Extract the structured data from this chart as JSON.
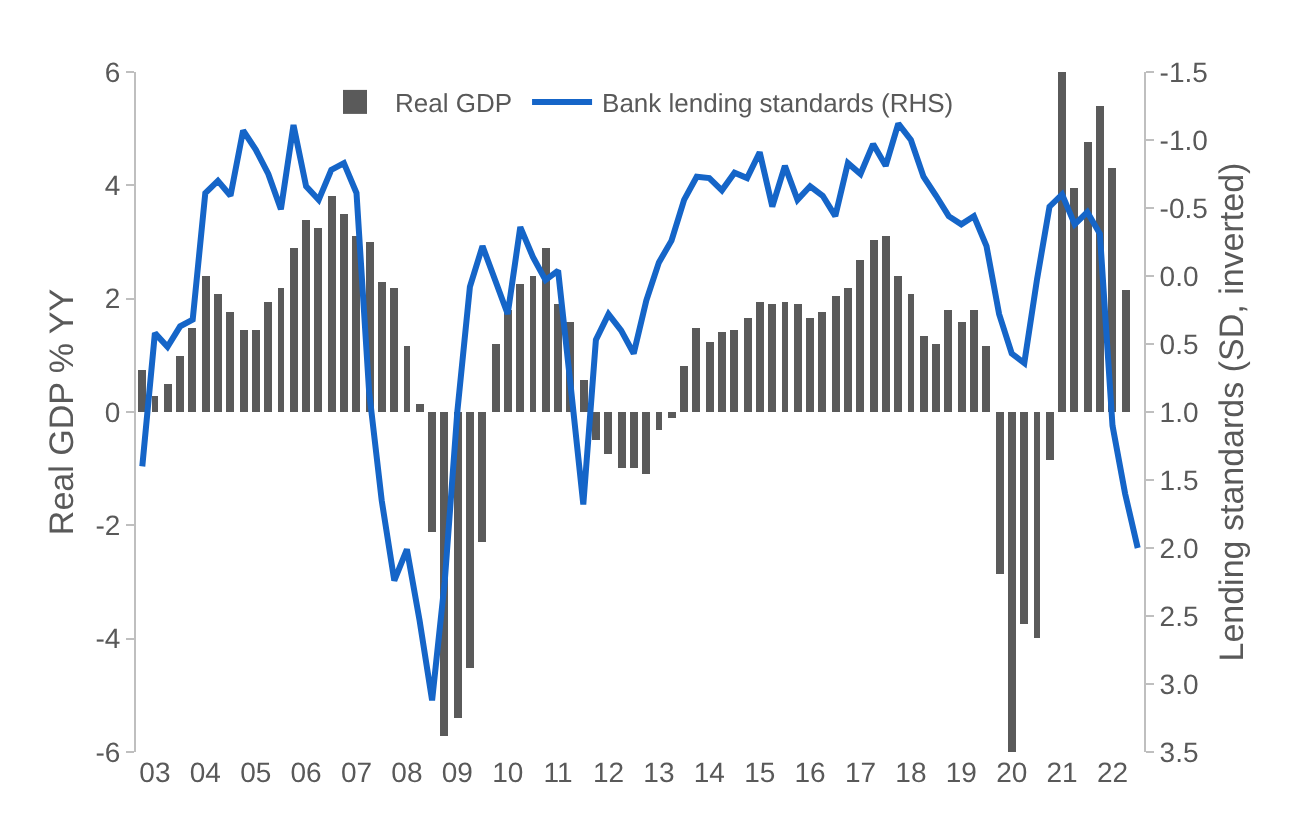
{
  "chart_data": {
    "type": "bar",
    "categories": [
      null,
      "03",
      null,
      null,
      null,
      "04",
      null,
      null,
      null,
      "05",
      null,
      null,
      null,
      "06",
      null,
      null,
      null,
      "07",
      null,
      null,
      null,
      "08",
      null,
      null,
      null,
      "09",
      null,
      null,
      null,
      "10",
      null,
      null,
      null,
      "11",
      null,
      null,
      null,
      "12",
      null,
      null,
      null,
      "13",
      null,
      null,
      null,
      "14",
      null,
      null,
      null,
      "15",
      null,
      null,
      null,
      "16",
      null,
      null,
      null,
      "17",
      null,
      null,
      null,
      "18",
      null,
      null,
      null,
      "19",
      null,
      null,
      null,
      "20",
      null,
      null,
      null,
      "21",
      null,
      null,
      null,
      "22",
      null,
      null
    ],
    "series": [
      {
        "name": "Real GDP",
        "color": "#5a5a5a",
        "values": [
          0.75,
          0.3,
          0.5,
          1.0,
          1.5,
          2.4,
          2.1,
          1.75,
          1.45,
          1.45,
          1.95,
          2.2,
          2.9,
          3.4,
          3.25,
          3.8,
          3.5,
          3.1,
          3.0,
          2.3,
          2.2,
          1.15,
          0.15,
          -2.1,
          -5.7,
          -5.4,
          -4.5,
          -2.3,
          1.2,
          1.8,
          2.25,
          2.4,
          2.9,
          1.9,
          1.6,
          0.55,
          -0.5,
          -0.75,
          -1.0,
          -1.0,
          -1.1,
          -0.3,
          -0.1,
          0.8,
          1.5,
          1.25,
          1.4,
          1.45,
          1.65,
          1.95,
          1.9,
          1.95,
          1.9,
          1.65,
          1.75,
          2.05,
          2.2,
          2.7,
          3.05,
          3.1,
          2.4,
          2.1,
          1.35,
          1.2,
          1.8,
          1.6,
          1.8,
          1.15,
          -2.85,
          -6.0,
          -3.75,
          -4.0,
          -0.85,
          6.0,
          3.95,
          4.75,
          5.4,
          4.3,
          2.15,
          null
        ]
      },
      {
        "name": "Bank lending standards (RHS)",
        "type": "line",
        "axis": "y2",
        "color": "#1565c8",
        "values": [
          1.4,
          0.42,
          0.52,
          0.37,
          0.32,
          -0.61,
          -0.7,
          -0.59,
          -1.07,
          -0.93,
          -0.75,
          -0.49,
          -1.11,
          -0.66,
          -0.56,
          -0.78,
          -0.83,
          -0.61,
          0.85,
          1.65,
          2.24,
          2.01,
          2.53,
          3.12,
          2.25,
          1.0,
          0.08,
          -0.22,
          0.03,
          0.28,
          -0.36,
          -0.14,
          0.03,
          -0.04,
          0.81,
          1.68,
          0.47,
          0.28,
          0.4,
          0.57,
          0.18,
          -0.1,
          -0.26,
          -0.56,
          -0.73,
          -0.72,
          -0.63,
          -0.76,
          -0.72,
          -0.91,
          -0.51,
          -0.81,
          -0.56,
          -0.66,
          -0.59,
          -0.44,
          -0.83,
          -0.75,
          -0.97,
          -0.81,
          -1.12,
          -1.0,
          -0.73,
          -0.59,
          -0.44,
          -0.38,
          -0.44,
          -0.22,
          0.28,
          0.57,
          0.64,
          0.03,
          -0.51,
          -0.6,
          -0.38,
          -0.47,
          -0.31,
          1.1,
          1.6,
          2.0
        ]
      }
    ],
    "ylim": [
      -6,
      6
    ],
    "yticks": [
      -6,
      -4,
      -2,
      0,
      2,
      4,
      6
    ],
    "y2lim": [
      3.5,
      -1.5
    ],
    "y2ticks": [
      {
        "value": -1.5,
        "label": "-1.5"
      },
      {
        "value": -1.0,
        "label": "-1.0"
      },
      {
        "value": -0.5,
        "label": "-0.5"
      },
      {
        "value": 0,
        "label": "0.0"
      },
      {
        "value": 0.5,
        "label": "0.5"
      },
      {
        "value": 1.0,
        "label": "1.0"
      },
      {
        "value": 1.5,
        "label": "1.5"
      },
      {
        "value": 2.0,
        "label": "2.0"
      },
      {
        "value": 2.5,
        "label": "2.5"
      },
      {
        "value": 3.0,
        "label": "3.0"
      },
      {
        "value": 3.5,
        "label": "3.5"
      }
    ],
    "ylabel": "Real GDP % YY",
    "y2label": "Lending standards (SD, inverted)",
    "legend": "top",
    "line_style": "solid",
    "marker": "none"
  }
}
